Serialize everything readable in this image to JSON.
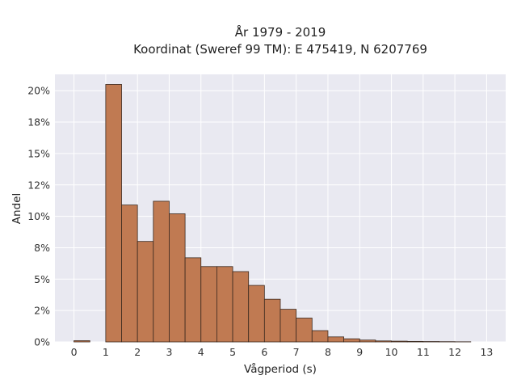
{
  "chart_data": {
    "type": "bar",
    "title_lines": [
      "År 1979 - 2019",
      "Koordinat (Sweref 99 TM): E 475419, N 6207769"
    ],
    "xlabel": "Vågperiod (s)",
    "ylabel": "Andel",
    "bin_width": 0.5,
    "bins": [
      {
        "x0": 0.0,
        "value": 0.1
      },
      {
        "x0": 1.0,
        "value": 20.5
      },
      {
        "x0": 1.5,
        "value": 10.9
      },
      {
        "x0": 2.0,
        "value": 8.0
      },
      {
        "x0": 2.5,
        "value": 11.2
      },
      {
        "x0": 3.0,
        "value": 10.2
      },
      {
        "x0": 3.5,
        "value": 6.7
      },
      {
        "x0": 4.0,
        "value": 6.0
      },
      {
        "x0": 4.5,
        "value": 6.0
      },
      {
        "x0": 5.0,
        "value": 5.6
      },
      {
        "x0": 5.5,
        "value": 4.5
      },
      {
        "x0": 6.0,
        "value": 3.4
      },
      {
        "x0": 6.5,
        "value": 2.6
      },
      {
        "x0": 7.0,
        "value": 1.9
      },
      {
        "x0": 7.5,
        "value": 0.9
      },
      {
        "x0": 8.0,
        "value": 0.4
      },
      {
        "x0": 8.5,
        "value": 0.25
      },
      {
        "x0": 9.0,
        "value": 0.15
      },
      {
        "x0": 9.5,
        "value": 0.08
      },
      {
        "x0": 10.0,
        "value": 0.06
      },
      {
        "x0": 10.5,
        "value": 0.04
      },
      {
        "x0": 11.0,
        "value": 0.03
      },
      {
        "x0": 11.5,
        "value": 0.02
      },
      {
        "x0": 12.0,
        "value": 0.01
      }
    ],
    "xlim": [
      -0.6,
      13.6
    ],
    "ylim": [
      0,
      21.3
    ],
    "x_ticks": [
      {
        "value": 0,
        "label": "0"
      },
      {
        "value": 1,
        "label": "1"
      },
      {
        "value": 2,
        "label": "2"
      },
      {
        "value": 3,
        "label": "3"
      },
      {
        "value": 4,
        "label": "4"
      },
      {
        "value": 5,
        "label": "5"
      },
      {
        "value": 6,
        "label": "6"
      },
      {
        "value": 7,
        "label": "7"
      },
      {
        "value": 8,
        "label": "8"
      },
      {
        "value": 9,
        "label": "9"
      },
      {
        "value": 10,
        "label": "10"
      },
      {
        "value": 11,
        "label": "11"
      },
      {
        "value": 12,
        "label": "12"
      },
      {
        "value": 13,
        "label": "13"
      }
    ],
    "y_ticks": [
      {
        "value": 0,
        "label": "0%"
      },
      {
        "value": 2.5,
        "label": "2%"
      },
      {
        "value": 5,
        "label": "5%"
      },
      {
        "value": 7.5,
        "label": "8%"
      },
      {
        "value": 10,
        "label": "10%"
      },
      {
        "value": 12.5,
        "label": "12%"
      },
      {
        "value": 15,
        "label": "15%"
      },
      {
        "value": 17.5,
        "label": "18%"
      },
      {
        "value": 20,
        "label": "20%"
      }
    ],
    "grid": true,
    "colors": {
      "bar_fill": "#c07a52",
      "bar_edge": "#3b2a20",
      "plot_background": "#e9e9f1",
      "grid": "#ffffff"
    }
  }
}
